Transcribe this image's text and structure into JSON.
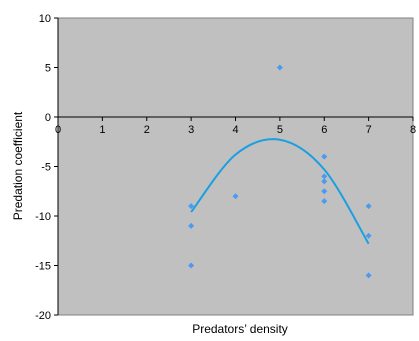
{
  "chart_data": {
    "type": "scatter",
    "title": "",
    "xlabel": "Predators’ density",
    "ylabel": "Predation coefficient",
    "xlim": [
      0,
      8
    ],
    "ylim": [
      -20,
      10
    ],
    "xticks": [
      "0",
      "1",
      "2",
      "3",
      "4",
      "5",
      "6",
      "7",
      "8"
    ],
    "yticks": [
      "10",
      "5",
      "0",
      "-5",
      "-10",
      "-15",
      "-20"
    ],
    "grid": false,
    "legend": "none",
    "plot_background": "#c0c0c0",
    "marker_color": "#4a9bf0",
    "trend_color": "#1aa0e0",
    "series": [
      {
        "values": [
          {
            "x": 3,
            "y": -9
          },
          {
            "x": 3,
            "y": -11
          },
          {
            "x": 3,
            "y": -15
          },
          {
            "x": 4,
            "y": -8
          },
          {
            "x": 5,
            "y": 5
          },
          {
            "x": 6,
            "y": -4
          },
          {
            "x": 6,
            "y": -6
          },
          {
            "x": 6,
            "y": -6.5
          },
          {
            "x": 6,
            "y": -7.5
          },
          {
            "x": 6,
            "y": -8.5
          },
          {
            "x": 7,
            "y": -9
          },
          {
            "x": 7,
            "y": -12
          },
          {
            "x": 7,
            "y": -16
          }
        ]
      }
    ],
    "trendline": {
      "type": "polynomial",
      "x_range": [
        3,
        7
      ],
      "points": [
        {
          "x": 3,
          "y": -9.6
        },
        {
          "x": 4,
          "y": -3.8
        },
        {
          "x": 5,
          "y": -2.3
        },
        {
          "x": 6,
          "y": -5.3
        },
        {
          "x": 7,
          "y": -12.8
        }
      ]
    }
  }
}
